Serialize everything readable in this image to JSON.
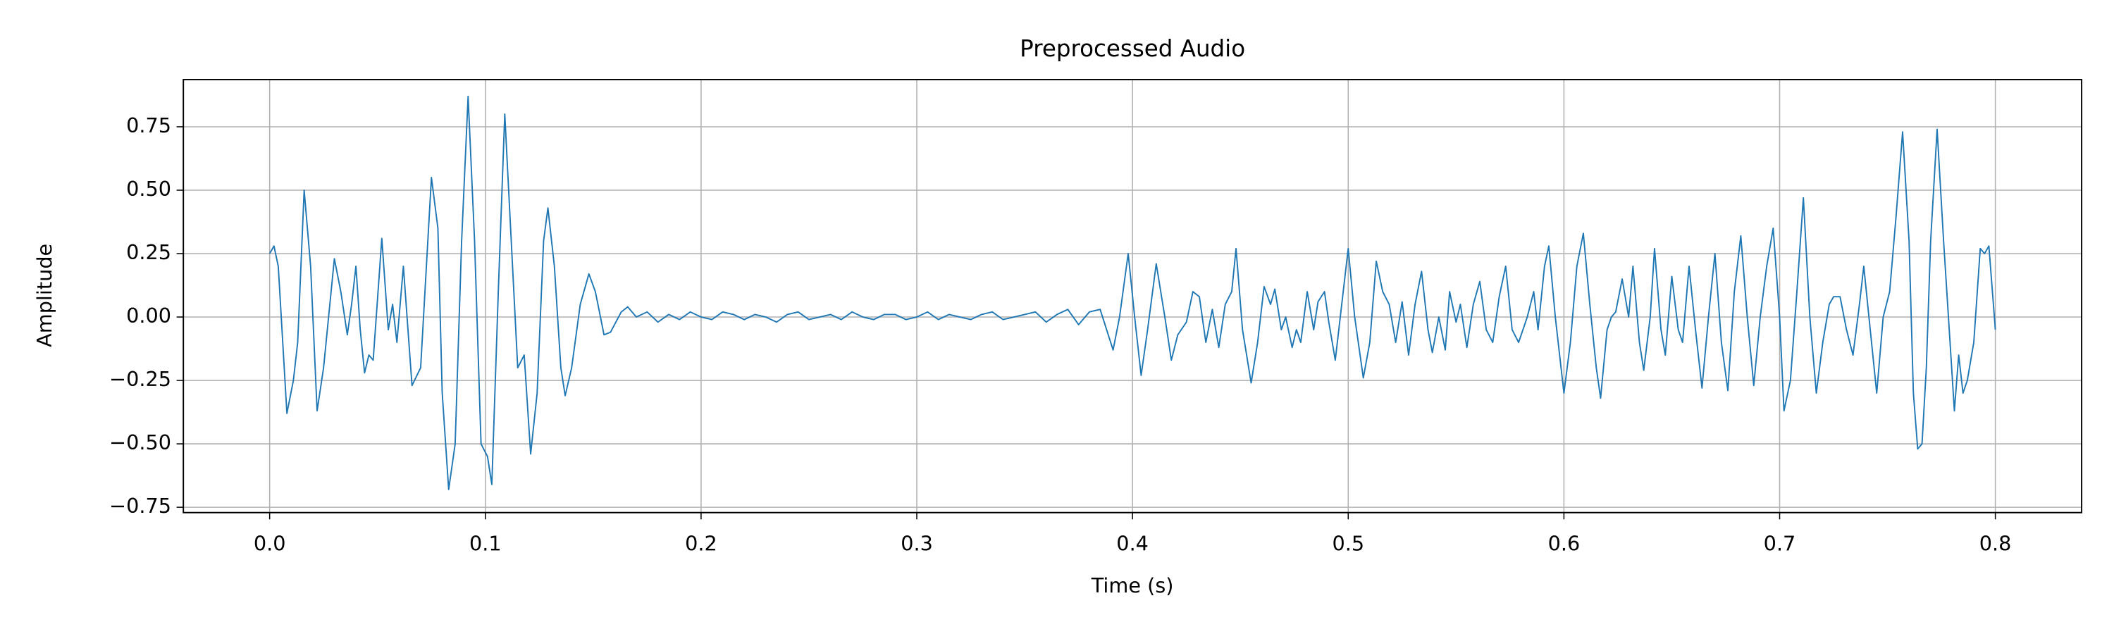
{
  "chart_data": {
    "type": "line",
    "title": "Preprocessed Audio",
    "x_label": "Time (s)",
    "y_label": "Amplitude",
    "color": "#1f77b4",
    "grid": true,
    "xlim": [
      -0.04,
      0.84
    ],
    "ylim": [
      -0.771,
      0.936
    ],
    "xticks": [
      {
        "value": 0,
        "label": "0.0"
      },
      0.1,
      0.2,
      0.3,
      0.4,
      0.5,
      0.6,
      0.7,
      0.8
    ],
    "yticks": [
      {
        "value": -0.75,
        "label": "−0.75"
      },
      {
        "value": -0.5,
        "label": "−0.50"
      },
      {
        "value": -0.25,
        "label": "−0.25"
      },
      {
        "value": 0,
        "label": "0.00"
      },
      0.25,
      {
        "value": 0.5,
        "label": "0.50"
      },
      0.75
    ],
    "x": [
      0,
      0.002,
      0.004,
      0.008,
      0.011,
      0.013,
      0.016,
      0.019,
      0.022,
      0.025,
      0.03,
      0.033,
      0.036,
      0.038,
      0.04,
      0.042,
      0.044,
      0.046,
      0.048,
      0.052,
      0.055,
      0.057,
      0.059,
      0.062,
      0.066,
      0.07,
      0.075,
      0.078,
      0.08,
      0.083,
      0.086,
      0.089,
      0.092,
      0.095,
      0.098,
      0.101,
      0.103,
      0.106,
      0.109,
      0.112,
      0.115,
      0.118,
      0.121,
      0.124,
      0.127,
      0.129,
      0.132,
      0.135,
      0.137,
      0.14,
      0.144,
      0.148,
      0.151,
      0.155,
      0.158,
      0.163,
      0.166,
      0.17,
      0.175,
      0.18,
      0.185,
      0.19,
      0.195,
      0.2,
      0.205,
      0.21,
      0.215,
      0.22,
      0.225,
      0.23,
      0.235,
      0.24,
      0.245,
      0.25,
      0.255,
      0.26,
      0.265,
      0.27,
      0.275,
      0.28,
      0.285,
      0.29,
      0.295,
      0.3,
      0.305,
      0.31,
      0.315,
      0.32,
      0.325,
      0.33,
      0.335,
      0.34,
      0.345,
      0.35,
      0.355,
      0.36,
      0.365,
      0.37,
      0.375,
      0.38,
      0.385,
      0.391,
      0.394,
      0.398,
      0.401,
      0.404,
      0.407,
      0.411,
      0.415,
      0.418,
      0.421,
      0.425,
      0.428,
      0.431,
      0.434,
      0.437,
      0.44,
      0.443,
      0.446,
      0.448,
      0.451,
      0.455,
      0.458,
      0.461,
      0.464,
      0.466,
      0.469,
      0.471,
      0.474,
      0.476,
      0.478,
      0.481,
      0.484,
      0.486,
      0.489,
      0.491,
      0.494,
      0.497,
      0.5,
      0.503,
      0.507,
      0.51,
      0.513,
      0.516,
      0.519,
      0.522,
      0.525,
      0.528,
      0.531,
      0.534,
      0.537,
      0.539,
      0.542,
      0.545,
      0.547,
      0.55,
      0.552,
      0.555,
      0.558,
      0.561,
      0.564,
      0.567,
      0.57,
      0.573,
      0.576,
      0.579,
      0.583,
      0.586,
      0.588,
      0.591,
      0.593,
      0.596,
      0.6,
      0.603,
      0.606,
      0.609,
      0.612,
      0.615,
      0.617,
      0.62,
      0.622,
      0.624,
      0.627,
      0.63,
      0.632,
      0.635,
      0.637,
      0.64,
      0.642,
      0.645,
      0.647,
      0.65,
      0.653,
      0.655,
      0.658,
      0.661,
      0.664,
      0.667,
      0.67,
      0.673,
      0.676,
      0.679,
      0.682,
      0.685,
      0.688,
      0.691,
      0.694,
      0.697,
      0.7,
      0.702,
      0.705,
      0.708,
      0.711,
      0.714,
      0.717,
      0.72,
      0.723,
      0.725,
      0.728,
      0.731,
      0.734,
      0.737,
      0.739,
      0.742,
      0.745,
      0.748,
      0.751,
      0.754,
      0.757,
      0.76,
      0.762,
      0.764,
      0.766,
      0.768,
      0.77,
      0.773,
      0.776,
      0.779,
      0.781,
      0.783,
      0.785,
      0.787,
      0.79,
      0.793,
      0.795,
      0.797,
      0.8
    ],
    "values": [
      0.25,
      0.28,
      0.2,
      -0.38,
      -0.25,
      -0.1,
      0.5,
      0.2,
      -0.37,
      -0.2,
      0.23,
      0.1,
      -0.07,
      0.05,
      0.2,
      -0.05,
      -0.22,
      -0.15,
      -0.17,
      0.31,
      -0.05,
      0.05,
      -0.1,
      0.2,
      -0.27,
      -0.2,
      0.55,
      0.35,
      -0.3,
      -0.68,
      -0.5,
      0.3,
      0.87,
      0.3,
      -0.5,
      -0.55,
      -0.66,
      0.1,
      0.8,
      0.3,
      -0.2,
      -0.15,
      -0.54,
      -0.3,
      0.3,
      0.43,
      0.2,
      -0.2,
      -0.31,
      -0.2,
      0.05,
      0.17,
      0.1,
      -0.07,
      -0.06,
      0.02,
      0.04,
      0,
      0.02,
      -0.02,
      0.01,
      -0.01,
      0.02,
      0,
      -0.01,
      0.02,
      0.01,
      -0.01,
      0.01,
      0,
      -0.02,
      0.01,
      0.02,
      -0.01,
      0,
      0.01,
      -0.01,
      0.02,
      0,
      -0.01,
      0.01,
      0.01,
      -0.01,
      0,
      0.02,
      -0.01,
      0.01,
      0,
      -0.01,
      0.01,
      0.02,
      -0.01,
      0,
      0.01,
      0.02,
      -0.02,
      0.01,
      0.03,
      -0.03,
      0.02,
      0.03,
      -0.13,
      0,
      0.25,
      0,
      -0.23,
      -0.05,
      0.21,
      0,
      -0.17,
      -0.07,
      -0.02,
      0.1,
      0.08,
      -0.1,
      0.03,
      -0.12,
      0.05,
      0.1,
      0.27,
      -0.05,
      -0.26,
      -0.1,
      0.12,
      0.05,
      0.11,
      -0.05,
      0,
      -0.12,
      -0.05,
      -0.1,
      0.1,
      -0.05,
      0.06,
      0.1,
      -0.02,
      -0.17,
      0.05,
      0.27,
      0,
      -0.24,
      -0.1,
      0.22,
      0.1,
      0.05,
      -0.1,
      0.06,
      -0.15,
      0.05,
      0.18,
      -0.05,
      -0.14,
      0,
      -0.13,
      0.1,
      -0.02,
      0.05,
      -0.12,
      0.05,
      0.14,
      -0.05,
      -0.1,
      0.08,
      0.2,
      -0.05,
      -0.1,
      0,
      0.1,
      -0.05,
      0.2,
      0.28,
      0,
      -0.3,
      -0.1,
      0.2,
      0.33,
      0.05,
      -0.2,
      -0.32,
      -0.05,
      0,
      0.02,
      0.15,
      0,
      0.2,
      -0.1,
      -0.21,
      0,
      0.27,
      -0.05,
      -0.15,
      0.16,
      -0.05,
      -0.1,
      0.2,
      -0.05,
      -0.28,
      0,
      0.25,
      -0.1,
      -0.29,
      0.1,
      0.32,
      0,
      -0.27,
      0,
      0.2,
      0.35,
      0,
      -0.37,
      -0.25,
      0.1,
      0.47,
      0,
      -0.3,
      -0.1,
      0.05,
      0.08,
      0.08,
      -0.05,
      -0.15,
      0.05,
      0.2,
      -0.05,
      -0.3,
      0,
      0.1,
      0.4,
      0.73,
      0.3,
      -0.3,
      -0.52,
      -0.5,
      -0.2,
      0.3,
      0.74,
      0.3,
      -0.1,
      -0.37,
      -0.15,
      -0.3,
      -0.25,
      -0.1,
      0.27,
      0.25,
      0.28,
      -0.05
    ]
  }
}
